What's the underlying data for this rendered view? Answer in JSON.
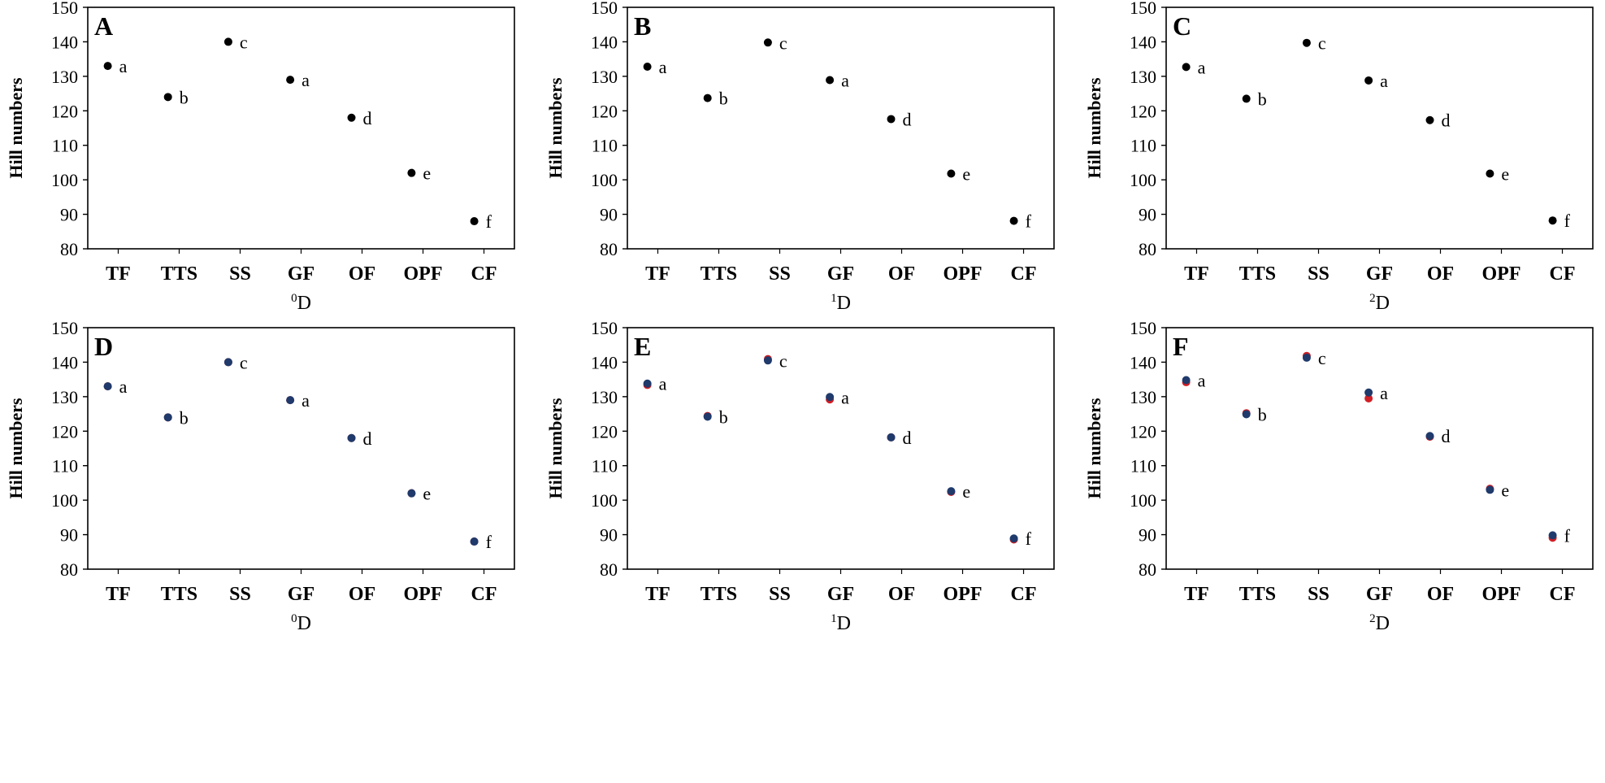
{
  "figure": {
    "marker_colors": {
      "black": "#000000",
      "navy": "#1f3a6b",
      "red": "#d11f25"
    }
  },
  "chart_data": [
    {
      "panel": "A",
      "type": "scatter",
      "categories": [
        "TF",
        "TTS",
        "SS",
        "GF",
        "OF",
        "OPF",
        "CF"
      ],
      "xlabel": "0D",
      "xlabel_superscript": "0",
      "xlabel_base": "D",
      "ylabel": "Hill numbers",
      "ylim": [
        80,
        150
      ],
      "yticks": [
        80,
        90,
        100,
        110,
        120,
        130,
        140,
        150
      ],
      "grid": false,
      "legend": "none",
      "series": [
        {
          "color": "#000000",
          "values": [
            133,
            124,
            140,
            129,
            118,
            102,
            88
          ]
        }
      ],
      "letters": [
        "a",
        "b",
        "c",
        "a",
        "d",
        "e",
        "f"
      ]
    },
    {
      "panel": "B",
      "type": "scatter",
      "categories": [
        "TF",
        "TTS",
        "SS",
        "GF",
        "OF",
        "OPF",
        "CF"
      ],
      "xlabel": "1D",
      "xlabel_superscript": "1",
      "xlabel_base": "D",
      "ylabel": "Hill numbers",
      "ylim": [
        80,
        150
      ],
      "yticks": [
        80,
        90,
        100,
        110,
        120,
        130,
        140,
        150
      ],
      "grid": false,
      "legend": "none",
      "series": [
        {
          "color": "#000000",
          "values": [
            132.8,
            123.7,
            139.8,
            128.9,
            117.6,
            101.8,
            88.1
          ]
        }
      ],
      "letters": [
        "a",
        "b",
        "c",
        "a",
        "d",
        "e",
        "f"
      ]
    },
    {
      "panel": "C",
      "type": "scatter",
      "categories": [
        "TF",
        "TTS",
        "SS",
        "GF",
        "OF",
        "OPF",
        "CF"
      ],
      "xlabel": "2D",
      "xlabel_superscript": "2",
      "xlabel_base": "D",
      "ylabel": "Hill numbers",
      "ylim": [
        80,
        150
      ],
      "yticks": [
        80,
        90,
        100,
        110,
        120,
        130,
        140,
        150
      ],
      "grid": false,
      "legend": "none",
      "series": [
        {
          "color": "#000000",
          "values": [
            132.7,
            123.5,
            139.7,
            128.8,
            117.3,
            101.8,
            88.2
          ]
        }
      ],
      "letters": [
        "a",
        "b",
        "c",
        "a",
        "d",
        "e",
        "f"
      ]
    },
    {
      "panel": "D",
      "type": "scatter",
      "categories": [
        "TF",
        "TTS",
        "SS",
        "GF",
        "OF",
        "OPF",
        "CF"
      ],
      "xlabel": "0D",
      "xlabel_superscript": "0",
      "xlabel_base": "D",
      "ylabel": "Hill numbers",
      "ylim": [
        80,
        150
      ],
      "yticks": [
        80,
        90,
        100,
        110,
        120,
        130,
        140,
        150
      ],
      "grid": false,
      "legend": "none",
      "series": [
        {
          "color": "#d11f25",
          "values": [
            133,
            124,
            140,
            129,
            118,
            102,
            88
          ]
        },
        {
          "color": "#1f3a6b",
          "values": [
            133,
            124,
            140,
            129,
            118,
            102,
            88
          ]
        }
      ],
      "letters": [
        "a",
        "b",
        "c",
        "a",
        "d",
        "e",
        "f"
      ]
    },
    {
      "panel": "E",
      "type": "scatter",
      "categories": [
        "TF",
        "TTS",
        "SS",
        "GF",
        "OF",
        "OPF",
        "CF"
      ],
      "xlabel": "1D",
      "xlabel_superscript": "1",
      "xlabel_base": "D",
      "ylabel": "Hill numbers",
      "ylim": [
        80,
        150
      ],
      "yticks": [
        80,
        90,
        100,
        110,
        120,
        130,
        140,
        150
      ],
      "grid": false,
      "legend": "none",
      "series": [
        {
          "color": "#d11f25",
          "values": [
            133.4,
            124.4,
            140.9,
            129.2,
            118.2,
            102.4,
            88.6
          ]
        },
        {
          "color": "#1f3a6b",
          "values": [
            133.8,
            124.2,
            140.5,
            129.9,
            118.2,
            102.6,
            88.9
          ]
        }
      ],
      "letters": [
        "a",
        "b",
        "c",
        "a",
        "d",
        "e",
        "f"
      ]
    },
    {
      "panel": "F",
      "type": "scatter",
      "categories": [
        "TF",
        "TTS",
        "SS",
        "GF",
        "OF",
        "OPF",
        "CF"
      ],
      "xlabel": "2D",
      "xlabel_superscript": "2",
      "xlabel_base": "D",
      "ylabel": "Hill numbers",
      "ylim": [
        80,
        150
      ],
      "yticks": [
        80,
        90,
        100,
        110,
        120,
        130,
        140,
        150
      ],
      "grid": false,
      "legend": "none",
      "series": [
        {
          "color": "#d11f25",
          "values": [
            134.2,
            125.2,
            141.8,
            129.5,
            118.4,
            103.3,
            89.1
          ]
        },
        {
          "color": "#1f3a6b",
          "values": [
            134.8,
            124.9,
            141.3,
            131.2,
            118.6,
            103.0,
            89.8
          ]
        }
      ],
      "letters": [
        "a",
        "b",
        "c",
        "a",
        "d",
        "e",
        "f"
      ]
    }
  ]
}
